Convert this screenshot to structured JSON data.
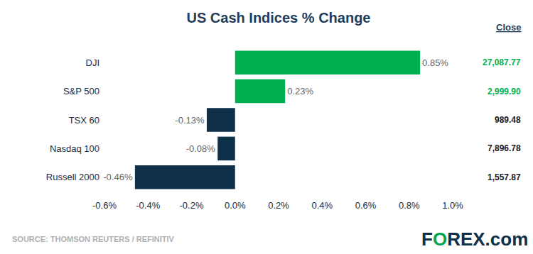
{
  "chart_data": {
    "type": "bar",
    "title": "US Cash Indices % Change",
    "orientation": "horizontal",
    "categories": [
      "DJI",
      "S&P 500",
      "TSX 60",
      "Nasdaq 100",
      "Russell 2000"
    ],
    "values": [
      0.85,
      0.23,
      -0.13,
      -0.08,
      -0.46
    ],
    "value_labels": [
      "0.85%",
      "0.23%",
      "-0.13%",
      "-0.08%",
      "-0.46%"
    ],
    "data_labels": true,
    "colors": [
      "#00b050",
      "#00b050",
      "#0e3048",
      "#0e3048",
      "#0e3048"
    ],
    "xlim": [
      -0.6,
      1.0
    ],
    "xticks": [
      {
        "value": -0.6,
        "label": "-0.6%"
      },
      {
        "value": -0.4,
        "label": "-0.4%"
      },
      {
        "value": -0.2,
        "label": "-0.2%"
      },
      {
        "value": 0.0,
        "label": "0.0%"
      },
      {
        "value": 0.2,
        "label": "0.2%"
      },
      {
        "value": 0.4,
        "label": "0.4%"
      },
      {
        "value": 0.6,
        "label": "0.6%"
      },
      {
        "value": 0.8,
        "label": "0.8%"
      },
      {
        "value": 1.0,
        "label": "1.0%"
      }
    ],
    "grid": false,
    "close_header": "Close",
    "close_values": [
      "27,087.77",
      "2,999.90",
      "989.48",
      "7,896.78",
      "1,557.87"
    ],
    "close_colors": [
      "#00b050",
      "#00b050",
      "#1a1a1a",
      "#1a1a1a",
      "#1a1a1a"
    ],
    "source": "SOURCE: THOMSON REUTERS / REFINITIV",
    "logo": "FOREX.com"
  }
}
